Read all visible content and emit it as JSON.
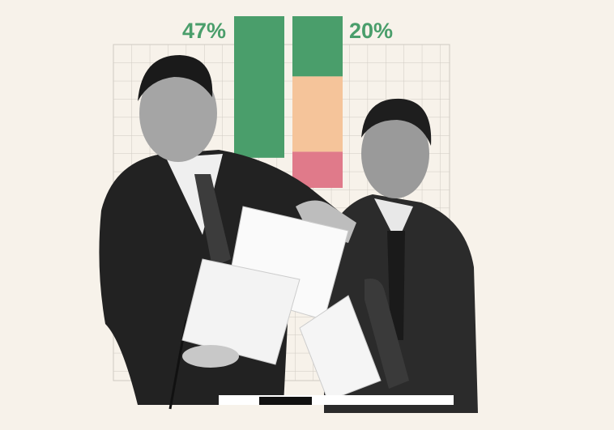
{
  "chart_data": {
    "type": "bar",
    "orientation": "hanging",
    "categories": [
      null,
      null
    ],
    "series": [
      {
        "color": "#4a9e6b",
        "values": [
          47,
          20
        ],
        "value_labels": [
          "47%",
          "20%"
        ]
      },
      {
        "color": "#f5c49a",
        "values": [
          null,
          25
        ]
      },
      {
        "color": "#e07a8a",
        "values": [
          null,
          12
        ]
      }
    ],
    "ylim": [
      0,
      100
    ]
  }
}
